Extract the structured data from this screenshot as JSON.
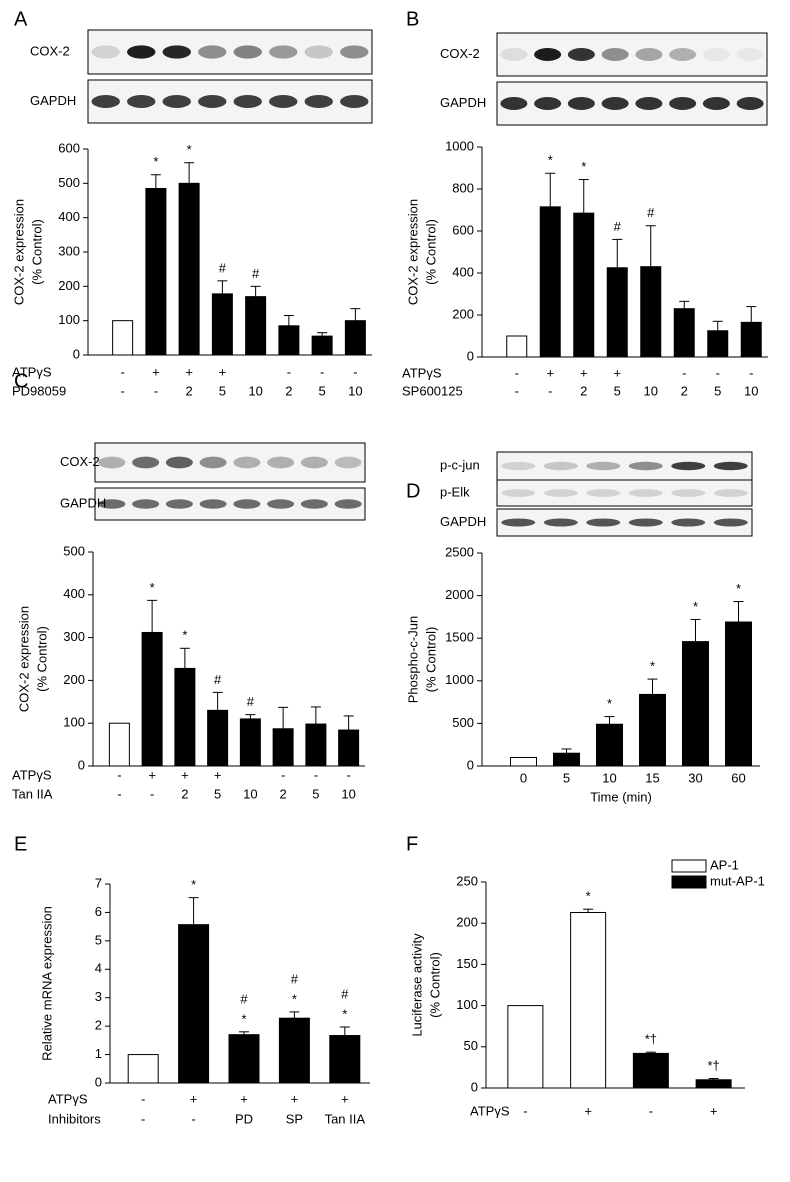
{
  "chart_data": [
    {
      "panel": "A",
      "type": "bar",
      "blots": [
        "COX-2",
        "GAPDH"
      ],
      "y_label": [
        "COX-2 expression",
        "(% Control)"
      ],
      "values": [
        100,
        485,
        500,
        178,
        170,
        85,
        55,
        100
      ],
      "errors": [
        0,
        40,
        60,
        38,
        30,
        30,
        10,
        35
      ],
      "colors": [
        "#ffffff",
        "#000000",
        "#000000",
        "#000000",
        "#000000",
        "#000000",
        "#000000",
        "#000000"
      ],
      "annotations": [
        null,
        "*",
        "*",
        "#",
        "#",
        null,
        null,
        null
      ],
      "rows": [
        {
          "label": "ATPγS",
          "values": [
            "-",
            "+",
            "+",
            "+",
            null,
            "-",
            "-",
            "-"
          ]
        },
        {
          "label": "PD98059",
          "values": [
            "-",
            "-",
            "2",
            "5",
            "10",
            "2",
            "5",
            "10"
          ]
        }
      ],
      "ylim": [
        0,
        600
      ],
      "yticks": [
        0,
        100,
        200,
        300,
        400,
        500,
        600
      ]
    },
    {
      "panel": "B",
      "type": "bar",
      "blots": [
        "COX-2",
        "GAPDH"
      ],
      "y_label": [
        "COX-2 expression",
        "(% Control)"
      ],
      "values": [
        100,
        715,
        685,
        425,
        430,
        230,
        125,
        165
      ],
      "errors": [
        0,
        160,
        160,
        135,
        195,
        35,
        45,
        75
      ],
      "colors": [
        "#ffffff",
        "#000000",
        "#000000",
        "#000000",
        "#000000",
        "#000000",
        "#000000",
        "#000000"
      ],
      "annotations": [
        null,
        "*",
        "*",
        "#",
        "#",
        null,
        null,
        null
      ],
      "rows": [
        {
          "label": "ATPγS",
          "values": [
            "-",
            "+",
            "+",
            "+",
            null,
            "-",
            "-",
            "-"
          ]
        },
        {
          "label": "SP600125",
          "values": [
            "-",
            "-",
            "2",
            "5",
            "10",
            "2",
            "5",
            "10"
          ]
        }
      ],
      "ylim": [
        0,
        1000
      ],
      "yticks": [
        0,
        200,
        400,
        600,
        800,
        1000
      ]
    },
    {
      "panel": "C",
      "type": "bar",
      "blots": [
        "COX-2",
        "GAPDH"
      ],
      "y_label": [
        "COX-2 expression",
        "(% Control)"
      ],
      "values": [
        100,
        312,
        228,
        130,
        110,
        87,
        98,
        84
      ],
      "errors": [
        0,
        75,
        47,
        42,
        10,
        50,
        40,
        33
      ],
      "colors": [
        "#ffffff",
        "#000000",
        "#000000",
        "#000000",
        "#000000",
        "#000000",
        "#000000",
        "#000000"
      ],
      "annotations": [
        null,
        "*",
        "*",
        "#",
        "#",
        null,
        null,
        null
      ],
      "rows": [
        {
          "label": "ATPγS",
          "values": [
            "-",
            "+",
            "+",
            "+",
            null,
            "-",
            "-",
            "-"
          ]
        },
        {
          "label": "Tan IIA",
          "values": [
            "-",
            "-",
            "2",
            "5",
            "10",
            "2",
            "5",
            "10"
          ]
        }
      ],
      "ylim": [
        0,
        500
      ],
      "yticks": [
        0,
        100,
        200,
        300,
        400,
        500
      ]
    },
    {
      "panel": "D",
      "type": "bar",
      "blots": [
        "p-c-jun",
        "p-Elk",
        "GAPDH"
      ],
      "y_label": [
        "Phospho-c-Jun",
        "(% Control)"
      ],
      "categories": [
        "0",
        "5",
        "10",
        "15",
        "30",
        "60"
      ],
      "x_label": "Time (min)",
      "values": [
        100,
        150,
        490,
        840,
        1460,
        1690
      ],
      "errors": [
        0,
        50,
        90,
        180,
        260,
        240
      ],
      "colors": [
        "#ffffff",
        "#000000",
        "#000000",
        "#000000",
        "#000000",
        "#000000"
      ],
      "annotations": [
        null,
        null,
        "*",
        "*",
        "*",
        "*"
      ],
      "ylim": [
        0,
        2500
      ],
      "yticks": [
        0,
        500,
        1000,
        1500,
        2000,
        2500
      ]
    },
    {
      "panel": "E",
      "type": "bar",
      "y_label": [
        "Relative mRNA expression"
      ],
      "values": [
        1,
        5.57,
        1.7,
        2.28,
        1.67
      ],
      "errors": [
        0,
        0.95,
        0.1,
        0.22,
        0.3
      ],
      "colors": [
        "#ffffff",
        "#000000",
        "#000000",
        "#000000",
        "#000000"
      ],
      "annotations": [
        null,
        [
          "*"
        ],
        [
          "#",
          "*"
        ],
        [
          "#",
          "*"
        ],
        [
          "#",
          "*"
        ]
      ],
      "rows": [
        {
          "label": "ATPγS",
          "values": [
            "-",
            "+",
            "+",
            "+",
            "+"
          ]
        },
        {
          "label": "Inhibitors",
          "values": [
            "-",
            "-",
            "PD",
            "SP",
            "Tan IIA"
          ]
        }
      ],
      "ylim": [
        0,
        7
      ],
      "yticks": [
        0,
        1,
        2,
        3,
        4,
        5,
        6,
        7
      ]
    },
    {
      "panel": "F",
      "type": "bar",
      "y_label": [
        "Luciferase activity",
        "(% Control)"
      ],
      "series": [
        {
          "name": "AP-1",
          "color": "#ffffff",
          "values": [
            100,
            213,
            null,
            null
          ],
          "errors": [
            0,
            4,
            null,
            null
          ]
        },
        {
          "name": "mut-AP-1",
          "color": "#000000",
          "values": [
            null,
            null,
            42,
            10
          ],
          "errors": [
            null,
            null,
            1.5,
            1.5
          ]
        }
      ],
      "annotations": [
        null,
        "*",
        "*†",
        "*†"
      ],
      "legend": "upper right",
      "rows": [
        {
          "label": "ATPγS",
          "values": [
            "-",
            "+",
            "-",
            "+"
          ]
        }
      ],
      "ylim": [
        0,
        250
      ],
      "yticks": [
        0,
        50,
        100,
        150,
        200,
        250
      ]
    }
  ]
}
